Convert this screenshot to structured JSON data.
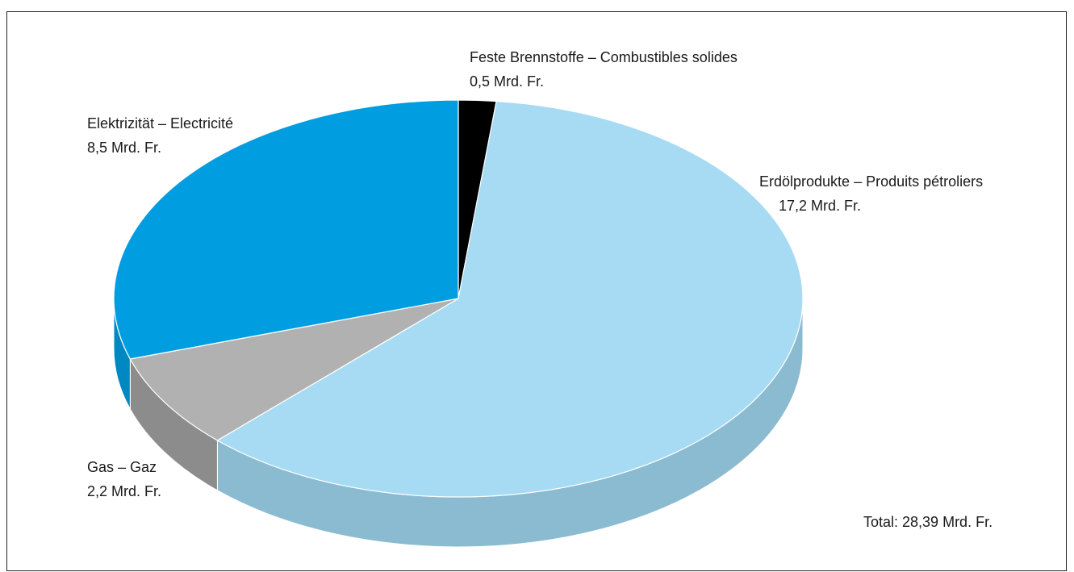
{
  "chart_data": {
    "type": "pie",
    "style": "3d",
    "slices": [
      {
        "label": "Feste Brennstoffe – Combustibles solides",
        "value": 0.5,
        "value_text": "0,5 Mrd. Fr.",
        "color": "#000000",
        "side_color": "#000000"
      },
      {
        "label": "Erdölprodukte – Produits pétroliers",
        "value": 17.2,
        "value_text": "17,2 Mrd. Fr.",
        "color": "#a6dbf3",
        "side_color": "#8bbbd1"
      },
      {
        "label": "Gas – Gaz",
        "value": 2.2,
        "value_text": "2,2 Mrd. Fr.",
        "color": "#b1b1b1",
        "side_color": "#8c8c8c"
      },
      {
        "label": "Elektrizität – Electricité",
        "value": 8.5,
        "value_text": "8,5 Mrd. Fr.",
        "color": "#009ee0",
        "side_color": "#0088c2"
      }
    ],
    "total_text": "Total: 28,39 Mrd. Fr."
  }
}
